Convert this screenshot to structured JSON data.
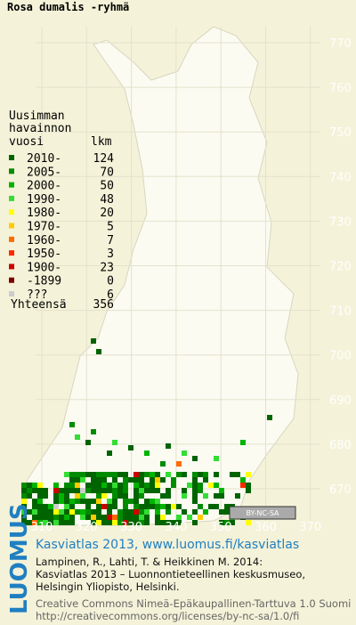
{
  "title": "Rosa dumalis -ryhmä",
  "legend": {
    "heading": [
      "Uusimman",
      "havainnon"
    ],
    "col_year": "vuosi",
    "col_count": "lkm",
    "rows": [
      {
        "label": "2010-",
        "count": 124,
        "color": "#006400"
      },
      {
        "label": "2005-",
        "count": 70,
        "color": "#008c00"
      },
      {
        "label": "2000-",
        "count": 50,
        "color": "#00b400"
      },
      {
        "label": "1990-",
        "count": 48,
        "color": "#33dd33"
      },
      {
        "label": "1980-",
        "count": 20,
        "color": "#ffff00"
      },
      {
        "label": "1970-",
        "count": 5,
        "color": "#ffcc00"
      },
      {
        "label": "1960-",
        "count": 7,
        "color": "#ff6a00"
      },
      {
        "label": "1950-",
        "count": 3,
        "color": "#ff2a00"
      },
      {
        "label": "1900-",
        "count": 23,
        "color": "#cc0000"
      },
      {
        "label": "-1899",
        "count": 0,
        "color": "#7a0000"
      },
      {
        "label": "???",
        "count": 6,
        "color": "#cccccc"
      }
    ],
    "total_label": "Yhteensä",
    "total": 356
  },
  "map": {
    "y_labels": [
      770,
      760,
      750,
      740,
      730,
      720,
      710,
      700,
      690,
      680,
      670
    ],
    "x_labels": [
      310,
      320,
      330,
      340,
      350,
      360,
      370
    ],
    "license_badge": "BY-NC-SA"
  },
  "footer": {
    "logo": "LUOMUS",
    "headline": "Kasviatlas 2013, www.luomus.fi/kasviatlas",
    "citation": [
      "Lampinen, R., Lahti, T. & Heikkinen M. 2014:",
      "Kasviatlas 2013 – Luonnontieteellinen keskusmuseo,",
      "Helsingin Yliopisto, Helsinki."
    ],
    "license": [
      "Creative Commons Nimeä-Epäkaupallinen-Tarttuva 1.0 Suomi",
      "http://creativecommons.org/licenses/by-nc-sa/1.0/fi"
    ]
  }
}
